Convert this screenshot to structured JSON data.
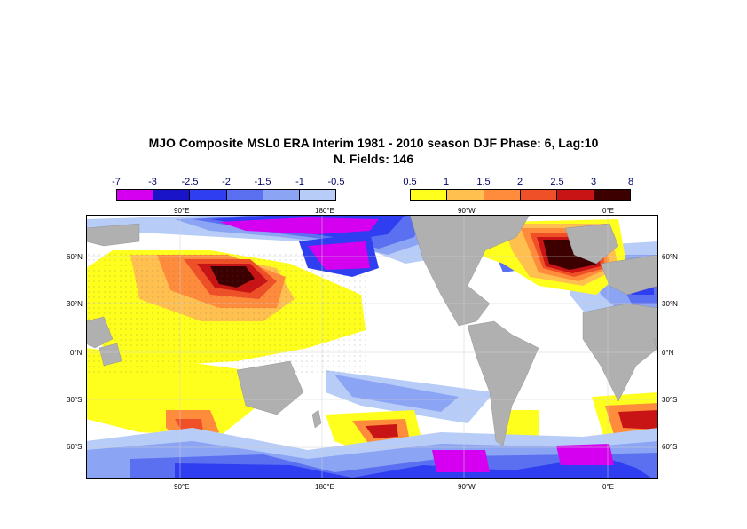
{
  "title": {
    "line1": "MJO Composite MSL0 ERA Interim 1981 - 2010 season DJF Phase: 6, Lag:10",
    "line2": "N. Fields: 146"
  },
  "colorbar_negative": {
    "labels": [
      "-7",
      "-3",
      "-2.5",
      "-2",
      "-1.5",
      "-1",
      "-0.5"
    ],
    "colors": [
      "#d600f0",
      "#1a14c8",
      "#2e3ef0",
      "#5a70f0",
      "#8ca4f4",
      "#b8ccf8"
    ]
  },
  "colorbar_positive": {
    "labels": [
      "0.5",
      "1",
      "1.5",
      "2",
      "2.5",
      "3",
      "8"
    ],
    "colors": [
      "#ffff1e",
      "#ffc050",
      "#ff8c3c",
      "#f05028",
      "#c81414",
      "#3c0000"
    ]
  },
  "axes": {
    "top_lon_labels": [
      "90°E",
      "180°E",
      "90°W",
      "0°E"
    ],
    "bottom_lon_labels": [
      "90°E",
      "180°E",
      "90°W",
      "0°E"
    ],
    "lat_labels": [
      "60°N",
      "30°N",
      "0°N",
      "30°S",
      "60°S"
    ]
  },
  "map_colors": {
    "land": "#b0b0b0",
    "ocean_neutral": "#ffffff"
  }
}
